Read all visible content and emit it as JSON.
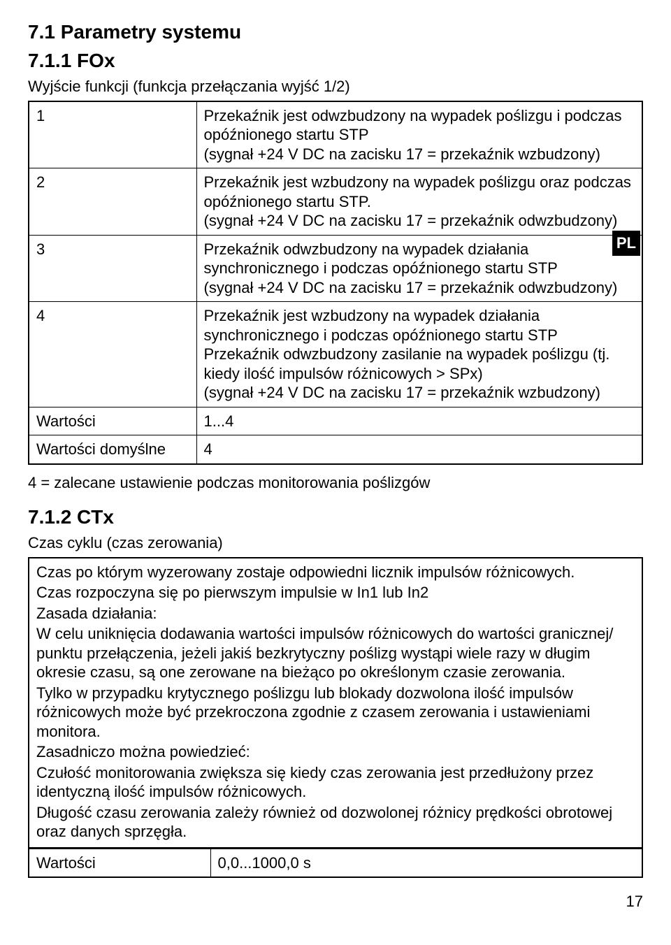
{
  "section71": {
    "title": "7.1  Parametry systemu"
  },
  "section711": {
    "title": "7.1.1  FOx",
    "intro": "Wyjście funkcji (funkcja przełączania wyjść 1/2)",
    "rows": [
      {
        "n": "1",
        "text": "Przekaźnik jest odwzbudzony na wypadek poślizgu i podczas opóźnionego startu STP\n(sygnał +24 V DC na zacisku 17 = przekaźnik wzbudzony)"
      },
      {
        "n": "2",
        "text": "Przekaźnik jest wzbudzony na wypadek poślizgu oraz podczas opóźnionego startu STP.\n(sygnał +24 V DC na zacisku 17 = przekaźnik odwzbudzony)"
      },
      {
        "n": "3",
        "text": "Przekaźnik odwzbudzony na wypadek działania synchronicznego i podczas opóźnionego startu STP\n(sygnał +24 V DC na zacisku 17 = przekaźnik odwzbudzony)"
      },
      {
        "n": "4",
        "text": "Przekaźnik jest wzbudzony na wypadek działania synchronicznego i podczas opóźnionego startu STP\nPrzekaźnik odwzbudzony zasilanie na wypadek poślizgu (tj. kiedy ilość impulsów różnicowych > SPx)\n(sygnał +24 V DC na zacisku 17 = przekaźnik wzbudzony)"
      }
    ],
    "wartosci_label": "Wartości",
    "wartosci_value": "1...4",
    "domyslne_label": "Wartości domyślne",
    "domyslne_value": "4",
    "note": "4 = zalecane ustawienie podczas monitorowania poślizgów"
  },
  "pl_label": "PL",
  "section712": {
    "title": "7.1.2  CTx",
    "intro": "Czas cyklu (czas zerowania)",
    "box_lines": [
      "Czas po którym wyzerowany zostaje odpowiedni licznik impulsów różnicowych.",
      "Czas rozpoczyna się po pierwszym impulsie w In1 lub In2",
      "Zasada działania:",
      "W celu uniknięcia dodawania wartości impulsów różnicowych do wartości granicznej/ punktu przełączenia, jeżeli jakiś bezkrytyczny poślizg wystąpi wiele razy w długim okresie czasu, są one zerowane na bieżąco po określonym czasie zerowania.",
      "Tylko w przypadku krytycznego poślizgu lub blokady dozwolona ilość impulsów różnicowych może być przekroczona zgodnie z czasem zerowania i ustawieniami monitora.",
      "Zasadniczo można powiedzieć:",
      "Czułość monitorowania zwiększa się kiedy czas zerowania jest przedłużony przez identyczną ilość impulsów różnicowych.",
      "Długość czasu zerowania zależy również od dozwolonej różnicy prędkości obrotowej oraz danych sprzęgła."
    ],
    "wartosci_label": "Wartości",
    "wartosci_value": "0,0...1000,0 s"
  },
  "page_number": "17"
}
